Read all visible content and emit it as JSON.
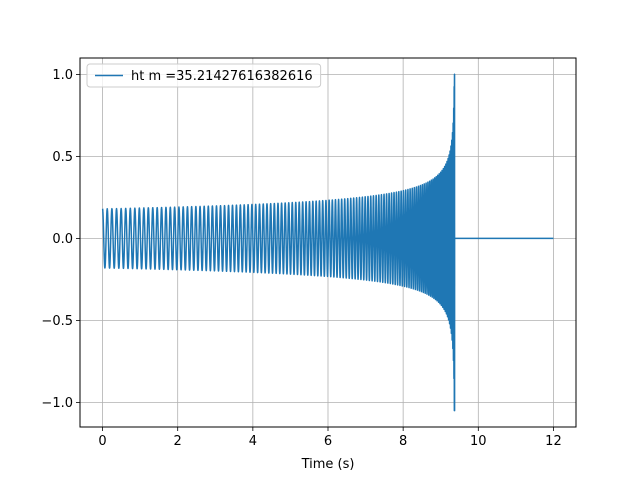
{
  "chart_data": {
    "type": "line",
    "title": "",
    "xlabel": "Time (s)",
    "ylabel": "",
    "xlim": [
      -0.6,
      12.6
    ],
    "ylim": [
      -1.15,
      1.1
    ],
    "xticks": [
      0,
      2,
      4,
      6,
      8,
      10,
      12
    ],
    "xtick_labels": [
      "0",
      "2",
      "4",
      "6",
      "8",
      "10",
      "12"
    ],
    "yticks": [
      -1.0,
      -0.5,
      0.0,
      0.5,
      1.0
    ],
    "ytick_labels": [
      "−1.0",
      "−0.5",
      "0.0",
      "0.5",
      "1.0"
    ],
    "grid": true,
    "legend": {
      "placement": "upper-left"
    },
    "series": [
      {
        "name": "ht m =35.21427616382616",
        "color": "#1f77b4",
        "waveform": {
          "start_time": 0.0,
          "merger_time": 9.37,
          "end_time": 12.0,
          "initial_amplitude": 0.18,
          "peak_amplitude_positive": 1.0,
          "peak_amplitude_negative": -1.05,
          "initial_frequency_hz": 8.0
        }
      }
    ]
  }
}
